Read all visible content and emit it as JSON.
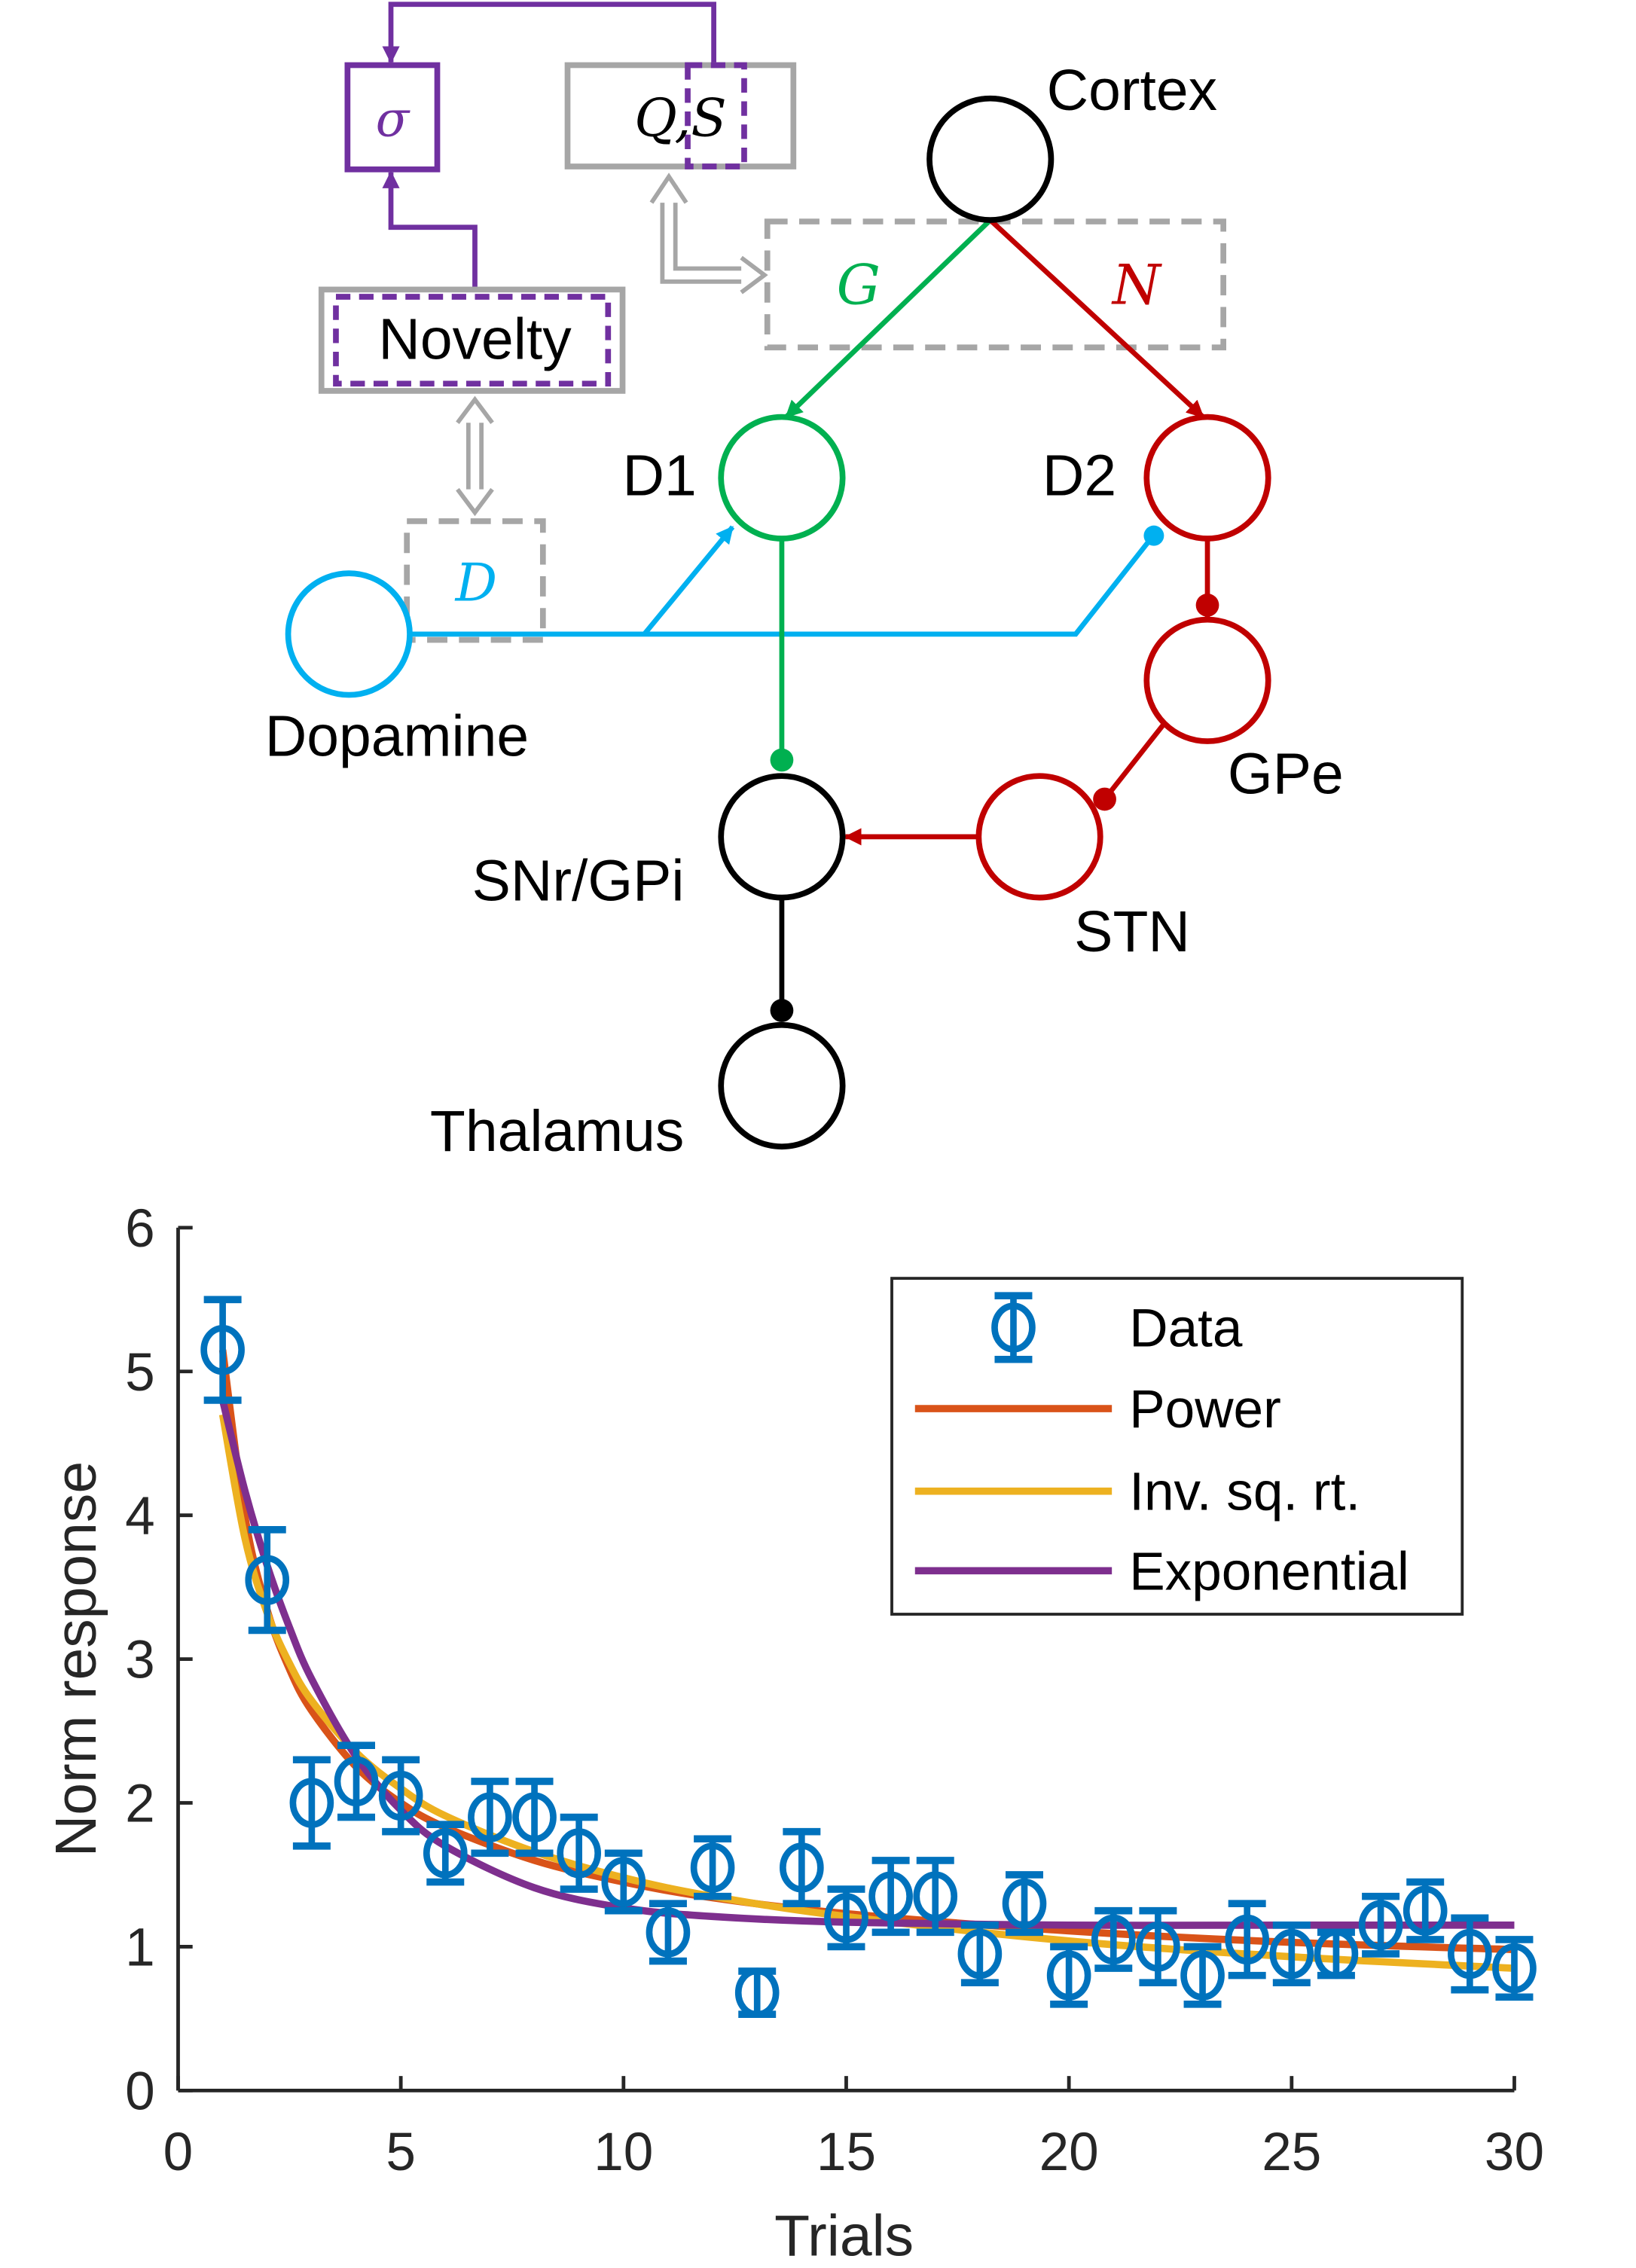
{
  "diagram": {
    "nodes": {
      "cortex": "Cortex",
      "d1": "D1",
      "d2": "D2",
      "dopamine": "Dopamine",
      "gpe": "GPe",
      "stn": "STN",
      "snr": "SNr/GPi",
      "thalamus": "Thalamus"
    },
    "boxes": {
      "sigma": "σ",
      "qs": "Q,S",
      "novelty": "Novelty",
      "g": "G",
      "n": "N",
      "d": "D"
    },
    "colors": {
      "direct": "#00B050",
      "indirect": "#C00000",
      "dopamine": "#00B0F0",
      "novelty": "#7030A0",
      "boxes": "#A6A6A6",
      "neutral": "#000000"
    }
  },
  "chart_data": {
    "type": "scatter",
    "title": "",
    "xlabel": "Trials",
    "ylabel": "Norm response",
    "xlim": [
      0,
      30
    ],
    "ylim": [
      0,
      6
    ],
    "xticks": [
      "0",
      "5",
      "10",
      "15",
      "20",
      "25",
      "30"
    ],
    "yticks": [
      "0",
      "1",
      "2",
      "3",
      "4",
      "5",
      "6"
    ],
    "grid": false,
    "legend_position": "top-right",
    "data": {
      "name": "Data",
      "color": "#0072BD",
      "x": [
        1,
        2,
        3,
        4,
        5,
        6,
        7,
        8,
        9,
        10,
        11,
        12,
        13,
        14,
        15,
        16,
        17,
        18,
        19,
        20,
        21,
        22,
        23,
        24,
        25,
        26,
        27,
        28,
        29,
        30
      ],
      "y": [
        5.15,
        3.55,
        2.0,
        2.15,
        2.05,
        1.65,
        1.9,
        1.9,
        1.65,
        1.45,
        1.1,
        1.55,
        0.68,
        1.55,
        1.2,
        1.35,
        1.35,
        0.95,
        1.3,
        0.8,
        1.05,
        1.0,
        0.8,
        1.05,
        0.95,
        0.95,
        1.15,
        1.25,
        0.95,
        0.85
      ],
      "err": [
        0.35,
        0.35,
        0.3,
        0.25,
        0.25,
        0.2,
        0.25,
        0.25,
        0.25,
        0.2,
        0.2,
        0.2,
        0.15,
        0.25,
        0.2,
        0.25,
        0.25,
        0.2,
        0.2,
        0.2,
        0.2,
        0.25,
        0.2,
        0.25,
        0.2,
        0.15,
        0.2,
        0.2,
        0.25,
        0.2
      ]
    },
    "series": [
      {
        "name": "Power",
        "color": "#D95319",
        "x": [
          1,
          1.5,
          2,
          2.5,
          3,
          4,
          5,
          6,
          8,
          10,
          12,
          15,
          20,
          25,
          30
        ],
        "y": [
          5.15,
          3.99,
          3.34,
          2.93,
          2.64,
          2.25,
          2.0,
          1.83,
          1.6,
          1.45,
          1.34,
          1.23,
          1.11,
          1.03,
          0.98
        ]
      },
      {
        "name": "Inv. sq. rt.",
        "color": "#EDB120",
        "x": [
          1,
          1.5,
          2,
          2.5,
          3,
          4,
          5,
          6,
          8,
          10,
          12,
          15,
          20,
          25,
          30
        ],
        "y": [
          4.7,
          3.84,
          3.32,
          2.97,
          2.71,
          2.35,
          2.1,
          1.91,
          1.66,
          1.48,
          1.35,
          1.21,
          1.04,
          0.93,
          0.85
        ]
      },
      {
        "name": "Exponential",
        "color": "#7E2F8E",
        "x": [
          1,
          1.5,
          2,
          2.5,
          3,
          4,
          5,
          6,
          8,
          10,
          12,
          15,
          20,
          25,
          30
        ],
        "y": [
          4.8,
          4.17,
          3.65,
          3.22,
          2.86,
          2.32,
          1.95,
          1.7,
          1.41,
          1.27,
          1.21,
          1.17,
          1.15,
          1.15,
          1.15
        ]
      }
    ]
  }
}
